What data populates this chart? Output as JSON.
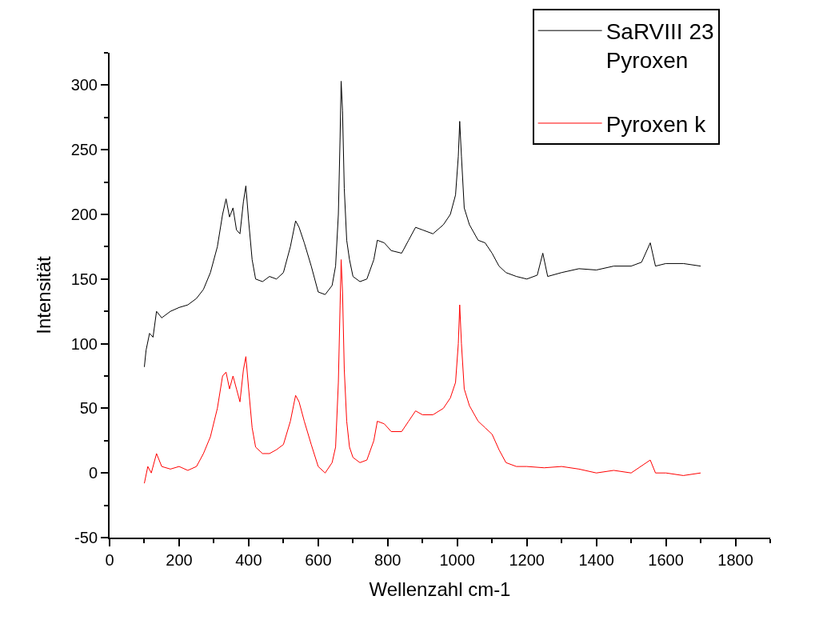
{
  "chart_data": {
    "type": "line",
    "xlabel": "Wellenzahl cm-1",
    "ylabel": "Intensität",
    "xlim": [
      0,
      1900
    ],
    "xticks": [
      0,
      200,
      400,
      600,
      800,
      1000,
      1200,
      1400,
      1600,
      1800
    ],
    "ylim": [
      -50,
      325
    ],
    "yticks": [
      -50,
      0,
      50,
      100,
      150,
      200,
      250,
      300
    ],
    "grid": false,
    "legend": "top right",
    "marker": "none",
    "line_style": "solid",
    "series": [
      {
        "name": "SaRVIII 23\nPyroxen",
        "color": "#000000",
        "x": [
          100,
          105,
          115,
          125,
          135,
          150,
          175,
          200,
          225,
          250,
          270,
          290,
          310,
          325,
          335,
          345,
          355,
          365,
          375,
          385,
          392,
          400,
          410,
          420,
          440,
          460,
          480,
          500,
          520,
          535,
          545,
          560,
          580,
          600,
          620,
          640,
          650,
          658,
          663,
          666,
          670,
          675,
          682,
          690,
          700,
          720,
          740,
          760,
          770,
          790,
          810,
          840,
          860,
          880,
          900,
          930,
          960,
          980,
          995,
          1003,
          1007,
          1012,
          1020,
          1035,
          1060,
          1080,
          1100,
          1120,
          1140,
          1170,
          1200,
          1230,
          1246,
          1260,
          1300,
          1350,
          1400,
          1450,
          1500,
          1530,
          1555,
          1570,
          1600,
          1650,
          1700
        ],
        "values": [
          82,
          95,
          108,
          105,
          125,
          120,
          125,
          128,
          130,
          135,
          142,
          155,
          175,
          200,
          212,
          198,
          205,
          188,
          185,
          210,
          222,
          195,
          165,
          150,
          148,
          152,
          150,
          155,
          175,
          195,
          190,
          178,
          160,
          140,
          138,
          145,
          160,
          200,
          260,
          303,
          280,
          220,
          180,
          165,
          152,
          148,
          150,
          165,
          180,
          178,
          172,
          170,
          180,
          190,
          188,
          185,
          192,
          200,
          215,
          245,
          272,
          245,
          205,
          192,
          180,
          178,
          170,
          160,
          155,
          152,
          150,
          153,
          170,
          152,
          155,
          158,
          157,
          160,
          160,
          163,
          178,
          160,
          162,
          162,
          160
        ]
      },
      {
        "name": "Pyroxen k",
        "color": "#ff0000",
        "x": [
          100,
          110,
          120,
          135,
          150,
          175,
          200,
          225,
          250,
          270,
          290,
          310,
          325,
          335,
          345,
          355,
          365,
          375,
          385,
          392,
          400,
          410,
          420,
          440,
          460,
          480,
          500,
          520,
          535,
          545,
          560,
          580,
          600,
          620,
          640,
          650,
          658,
          663,
          666,
          670,
          675,
          682,
          690,
          700,
          720,
          740,
          760,
          770,
          790,
          810,
          840,
          860,
          880,
          900,
          930,
          960,
          980,
          995,
          1003,
          1007,
          1012,
          1020,
          1035,
          1060,
          1080,
          1100,
          1120,
          1140,
          1170,
          1200,
          1250,
          1300,
          1350,
          1400,
          1450,
          1500,
          1555,
          1570,
          1600,
          1650,
          1700
        ],
        "values": [
          -8,
          5,
          0,
          15,
          5,
          3,
          5,
          2,
          5,
          15,
          28,
          50,
          75,
          78,
          65,
          75,
          65,
          55,
          80,
          90,
          65,
          35,
          20,
          15,
          15,
          18,
          22,
          40,
          60,
          55,
          40,
          22,
          5,
          0,
          8,
          20,
          70,
          130,
          165,
          140,
          80,
          40,
          20,
          12,
          8,
          10,
          25,
          40,
          38,
          32,
          32,
          40,
          48,
          45,
          45,
          50,
          58,
          70,
          100,
          130,
          100,
          65,
          52,
          40,
          35,
          30,
          18,
          8,
          5,
          5,
          4,
          5,
          3,
          0,
          2,
          0,
          10,
          0,
          0,
          -2,
          0
        ]
      }
    ]
  }
}
